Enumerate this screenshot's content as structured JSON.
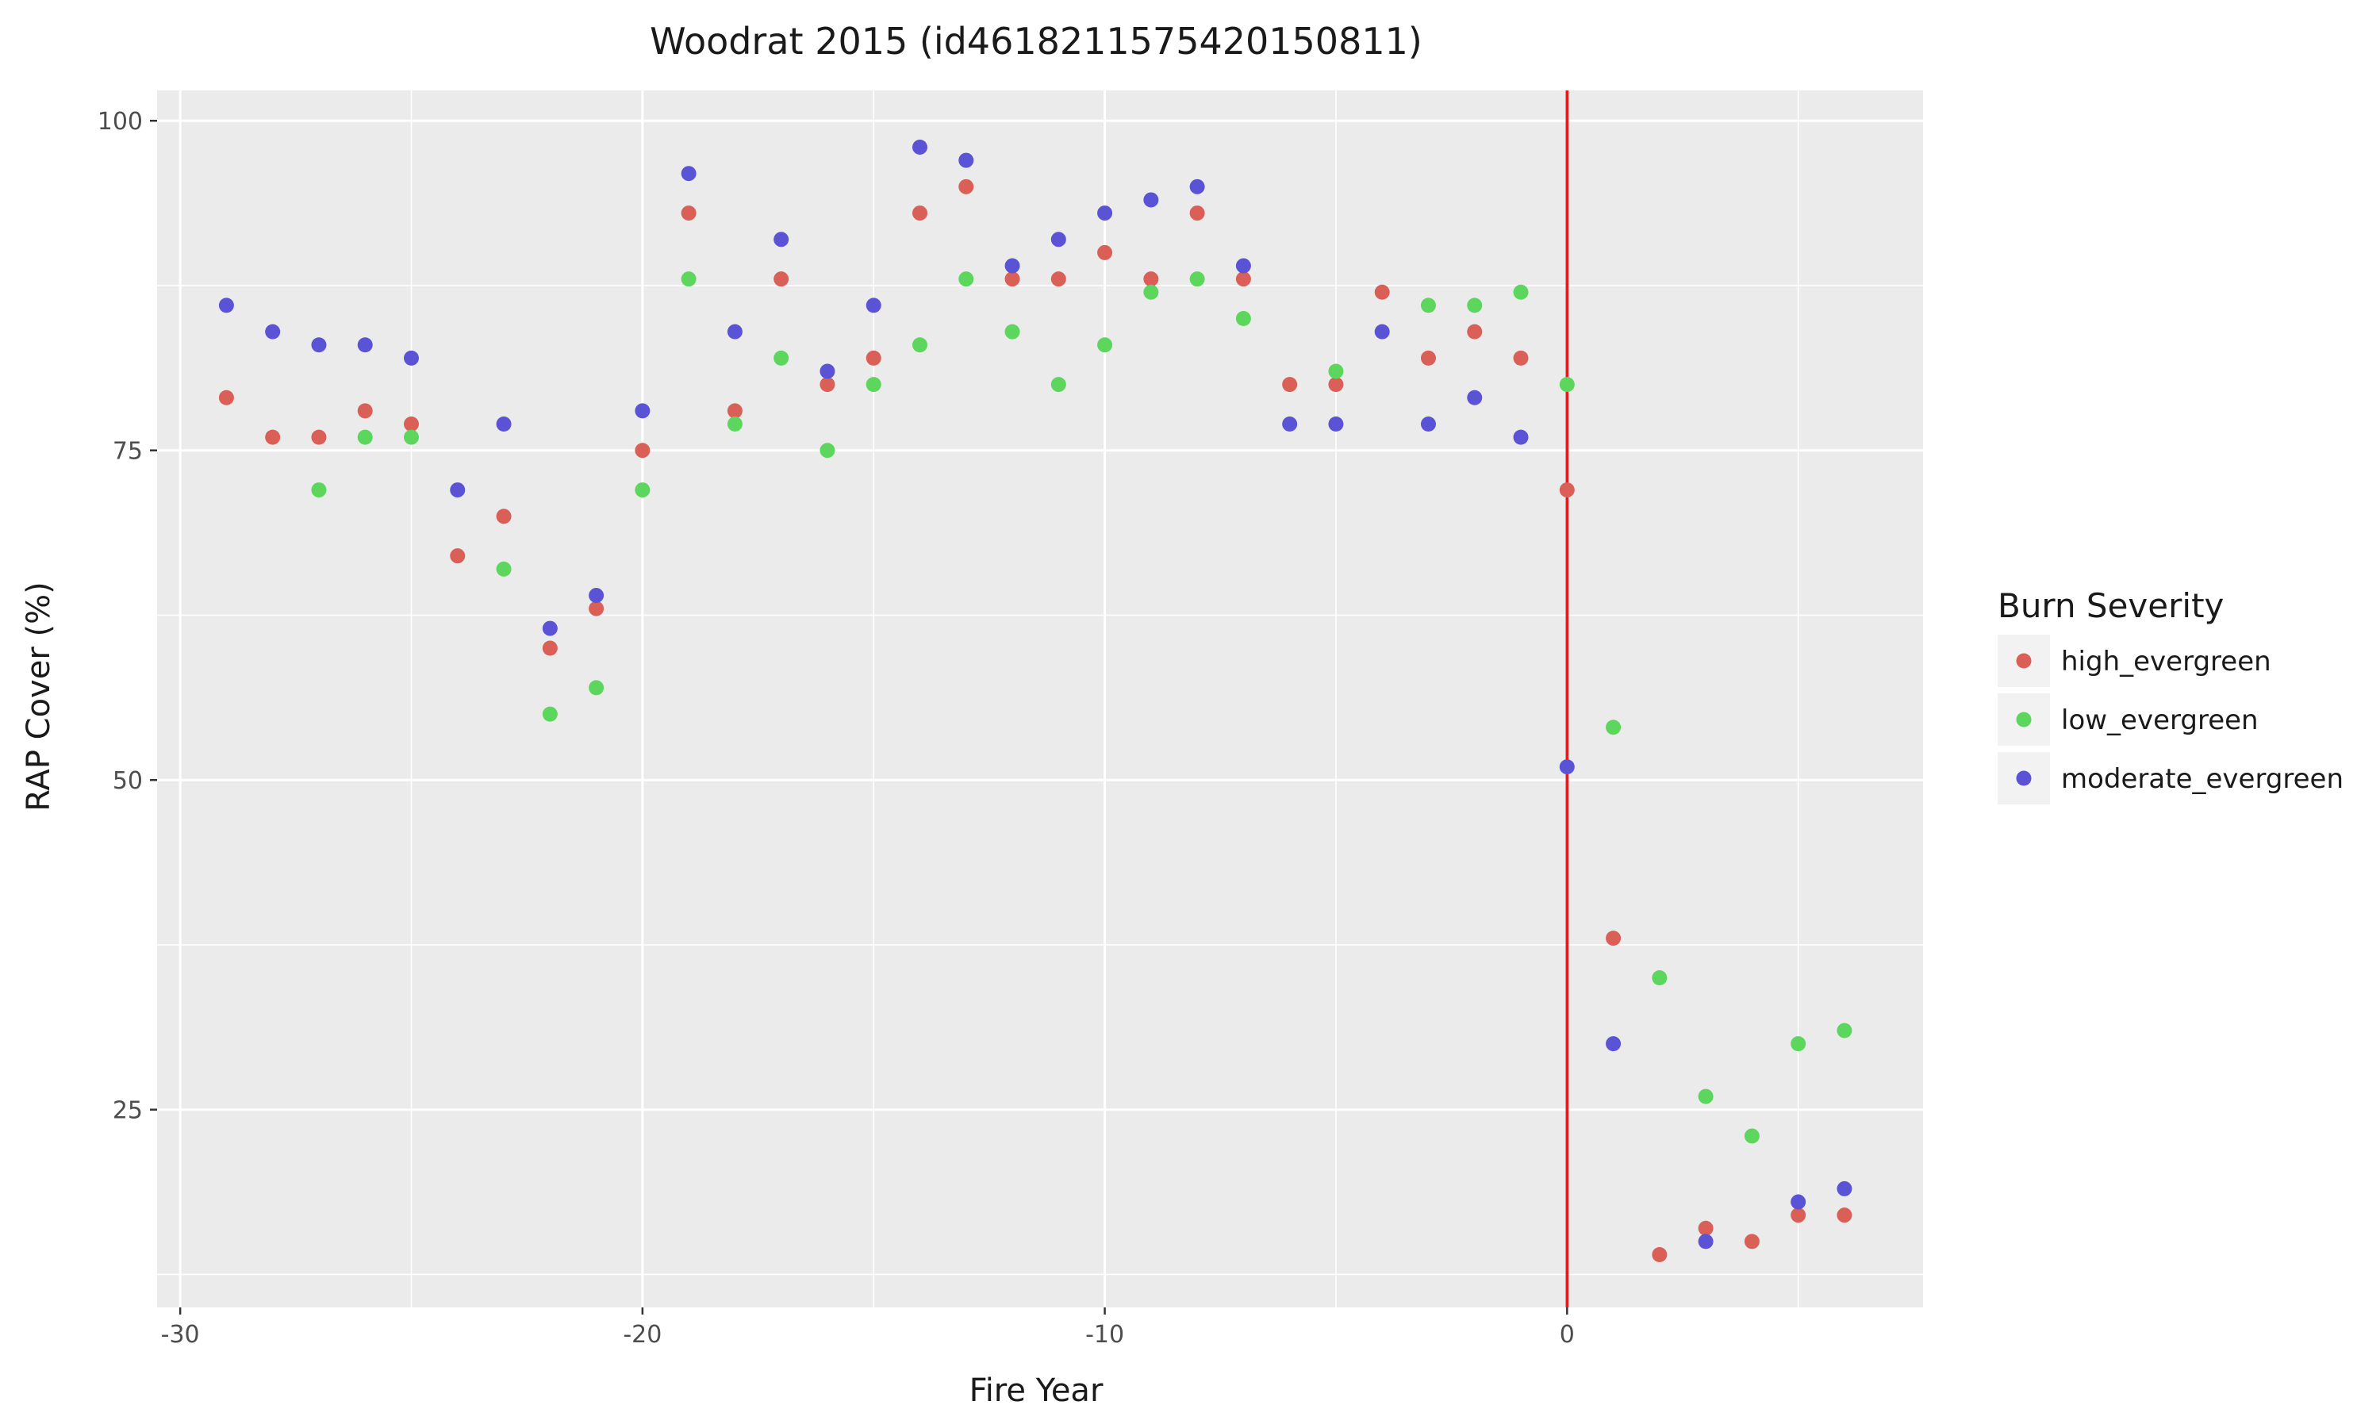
{
  "chart_data": {
    "type": "scatter",
    "title": "Woodrat 2015 (id461821157542015081​1)",
    "xlabel": "Fire Year",
    "ylabel": "RAP Cover (%)",
    "xlim": [
      -30.5,
      7.7
    ],
    "ylim": [
      10,
      102.3
    ],
    "x_ticks": [
      -30,
      -20,
      -10,
      0
    ],
    "y_ticks": [
      25,
      50,
      75,
      100
    ],
    "grid": true,
    "vline": {
      "x": 0,
      "color": "#e41a1c"
    },
    "legend": {
      "title": "Burn Severity",
      "position": "right"
    },
    "series": [
      {
        "name": "high_evergreen",
        "color": "#d95f57",
        "points": [
          [
            -29,
            79
          ],
          [
            -28,
            76
          ],
          [
            -27,
            76
          ],
          [
            -26,
            78
          ],
          [
            -25,
            77
          ],
          [
            -24,
            67
          ],
          [
            -23,
            70
          ],
          [
            -22,
            60
          ],
          [
            -21,
            63
          ],
          [
            -20,
            75
          ],
          [
            -19,
            93
          ],
          [
            -18,
            78
          ],
          [
            -17,
            88
          ],
          [
            -16,
            80
          ],
          [
            -15,
            82
          ],
          [
            -14,
            93
          ],
          [
            -13,
            95
          ],
          [
            -12,
            88
          ],
          [
            -11,
            88
          ],
          [
            -10,
            90
          ],
          [
            -9,
            88
          ],
          [
            -8,
            93
          ],
          [
            -7,
            88
          ],
          [
            -6,
            80
          ],
          [
            -5,
            80
          ],
          [
            -4,
            87
          ],
          [
            -3,
            82
          ],
          [
            -2,
            84
          ],
          [
            -1,
            82
          ],
          [
            0,
            72
          ],
          [
            1,
            38
          ],
          [
            2,
            14
          ],
          [
            3,
            16
          ],
          [
            4,
            15
          ],
          [
            5,
            17
          ],
          [
            6,
            17
          ]
        ]
      },
      {
        "name": "low_evergreen",
        "color": "#5cd65c",
        "points": [
          [
            -27,
            72
          ],
          [
            -26,
            76
          ],
          [
            -25,
            76
          ],
          [
            -23,
            66
          ],
          [
            -22,
            55
          ],
          [
            -21,
            57
          ],
          [
            -20,
            72
          ],
          [
            -19,
            88
          ],
          [
            -18,
            77
          ],
          [
            -17,
            82
          ],
          [
            -16,
            75
          ],
          [
            -15,
            80
          ],
          [
            -14,
            83
          ],
          [
            -13,
            88
          ],
          [
            -12,
            84
          ],
          [
            -11,
            80
          ],
          [
            -10,
            83
          ],
          [
            -9,
            87
          ],
          [
            -8,
            88
          ],
          [
            -7,
            85
          ],
          [
            -5,
            81
          ],
          [
            -3,
            86
          ],
          [
            -2,
            86
          ],
          [
            -1,
            87
          ],
          [
            0,
            80
          ],
          [
            1,
            54
          ],
          [
            2,
            35
          ],
          [
            3,
            26
          ],
          [
            4,
            23
          ],
          [
            5,
            30
          ],
          [
            6,
            31
          ]
        ]
      },
      {
        "name": "moderate_evergreen",
        "color": "#5a53d6",
        "points": [
          [
            -29,
            86
          ],
          [
            -28,
            84
          ],
          [
            -27,
            83
          ],
          [
            -26,
            83
          ],
          [
            -25,
            82
          ],
          [
            -24,
            72
          ],
          [
            -23,
            77
          ],
          [
            -22,
            61.5
          ],
          [
            -21,
            64
          ],
          [
            -20,
            78
          ],
          [
            -19,
            96
          ],
          [
            -18,
            84
          ],
          [
            -17,
            91
          ],
          [
            -16,
            81
          ],
          [
            -15,
            86
          ],
          [
            -14,
            98
          ],
          [
            -13,
            97
          ],
          [
            -12,
            89
          ],
          [
            -11,
            91
          ],
          [
            -10,
            93
          ],
          [
            -9,
            94
          ],
          [
            -8,
            95
          ],
          [
            -7,
            89
          ],
          [
            -6,
            77
          ],
          [
            -5,
            77
          ],
          [
            -4,
            84
          ],
          [
            -3,
            77
          ],
          [
            -2,
            79
          ],
          [
            -1,
            76
          ],
          [
            0,
            51
          ],
          [
            1,
            30
          ],
          [
            3,
            15
          ],
          [
            5,
            18
          ],
          [
            6,
            19
          ]
        ]
      }
    ]
  }
}
